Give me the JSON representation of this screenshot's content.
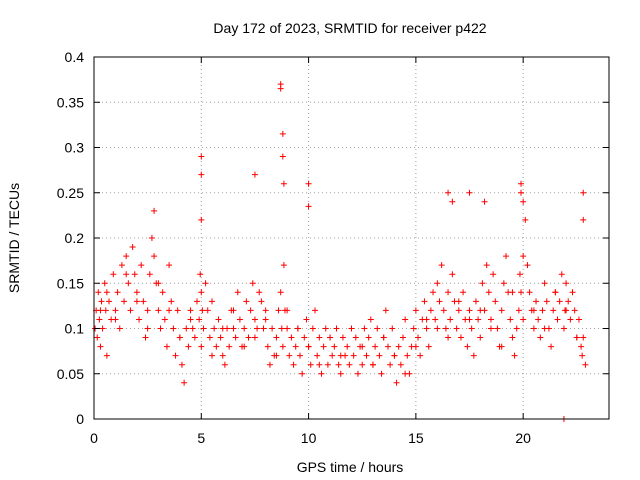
{
  "chart_data": {
    "type": "scatter",
    "title": "Day 172 of 2023, SRMTID for receiver p422",
    "xlabel": "GPS time / hours",
    "ylabel": "SRMTID / TECUs",
    "xlim": [
      0,
      24
    ],
    "ylim": [
      0,
      0.4
    ],
    "x_ticks": [
      0,
      5,
      10,
      15,
      20
    ],
    "x_tick_labels": [
      "0",
      "5",
      "10",
      "15",
      "20"
    ],
    "y_ticks": [
      0,
      0.05,
      0.1,
      0.15,
      0.2,
      0.25,
      0.3,
      0.35,
      0.4
    ],
    "y_tick_labels": [
      "0",
      "0.05",
      "0.1",
      "0.15",
      "0.2",
      "0.25",
      "0.3",
      "0.35",
      "0.4"
    ],
    "grid": true,
    "marker": "+",
    "color": "#ff0000",
    "series": [
      {
        "name": "p422",
        "x": [
          0.05,
          0.1,
          0.15,
          0.2,
          0.25,
          0.3,
          0.35,
          0.4,
          0.5,
          0.55,
          0.6,
          0.7,
          0.8,
          0.9,
          1.0,
          1.1,
          1.2,
          1.3,
          1.4,
          1.5,
          1.6,
          1.7,
          1.8,
          1.9,
          2.0,
          2.1,
          2.2,
          2.3,
          2.4,
          2.5,
          2.6,
          2.7,
          2.8,
          2.9,
          3.0,
          3.1,
          3.2,
          3.3,
          3.4,
          3.5,
          3.6,
          3.7,
          3.8,
          3.9,
          4.0,
          4.1,
          4.2,
          4.3,
          4.4,
          4.5,
          4.6,
          4.7,
          4.8,
          4.9,
          4.95,
          5.0,
          5.05,
          5.1,
          5.2,
          5.3,
          5.4,
          5.5,
          5.6,
          5.7,
          5.8,
          5.9,
          6.0,
          6.1,
          6.2,
          6.3,
          6.4,
          6.5,
          6.6,
          6.7,
          6.8,
          6.9,
          7.0,
          7.1,
          7.2,
          7.3,
          7.4,
          7.5,
          7.6,
          7.7,
          7.8,
          7.9,
          8.0,
          8.1,
          8.2,
          8.3,
          8.4,
          8.5,
          8.6,
          8.7,
          8.75,
          8.8,
          8.85,
          8.9,
          9.0,
          9.1,
          9.2,
          9.3,
          9.4,
          9.5,
          9.6,
          9.7,
          9.8,
          9.9,
          10.0,
          10.1,
          10.2,
          10.3,
          10.4,
          10.5,
          10.6,
          10.7,
          10.8,
          10.9,
          11.0,
          11.1,
          11.2,
          11.3,
          11.4,
          11.5,
          11.6,
          11.7,
          11.8,
          11.9,
          12.0,
          12.1,
          12.2,
          12.3,
          12.4,
          12.5,
          12.6,
          12.7,
          12.8,
          12.9,
          13.0,
          13.1,
          13.2,
          13.3,
          13.4,
          13.5,
          13.6,
          13.7,
          13.8,
          13.9,
          14.0,
          14.1,
          14.2,
          14.3,
          14.4,
          14.5,
          14.6,
          14.7,
          14.8,
          14.9,
          15.0,
          15.1,
          15.2,
          15.3,
          15.4,
          15.5,
          15.6,
          15.7,
          15.8,
          15.9,
          16.0,
          16.1,
          16.2,
          16.3,
          16.4,
          16.5,
          16.6,
          16.7,
          16.8,
          16.9,
          17.0,
          17.1,
          17.2,
          17.3,
          17.4,
          17.5,
          17.6,
          17.7,
          17.8,
          17.9,
          18.0,
          18.1,
          18.2,
          18.3,
          18.4,
          18.5,
          18.6,
          18.7,
          18.8,
          18.9,
          19.0,
          19.1,
          19.2,
          19.3,
          19.4,
          19.5,
          19.6,
          19.7,
          19.8,
          19.85,
          19.9,
          20.0,
          20.1,
          20.2,
          20.3,
          20.4,
          20.5,
          20.6,
          20.7,
          20.8,
          20.9,
          21.0,
          21.1,
          21.2,
          21.3,
          21.4,
          21.5,
          21.6,
          21.7,
          21.8,
          21.9,
          21.95,
          22.0,
          22.1,
          22.2,
          22.3,
          22.4,
          22.5,
          22.6,
          22.7,
          22.75,
          22.8,
          22.9,
          0.3,
          0.6,
          1.0,
          1.5,
          2.0,
          2.5,
          3.0,
          3.5,
          4.0,
          4.5,
          5.0,
          5.5,
          6.0,
          6.5,
          7.0,
          7.5,
          8.0,
          8.5,
          9.0,
          9.5,
          10.0,
          10.5,
          11.0,
          11.5,
          12.0,
          12.5,
          13.0,
          13.5,
          14.0,
          14.5,
          15.0,
          15.5,
          16.0,
          16.5,
          17.0,
          17.5,
          18.0,
          18.5,
          19.0,
          19.5,
          20.0,
          20.5,
          21.0,
          21.5,
          22.0,
          22.5,
          2.8,
          5.0,
          5.0,
          5.0,
          7.5,
          8.7,
          8.7,
          8.8,
          8.8,
          8.85,
          10.0,
          10.0,
          16.5,
          16.7,
          17.5,
          18.2,
          19.9,
          19.9,
          20.0,
          22.8,
          22.8,
          21.9
        ],
        "y": [
          0.1,
          0.12,
          0.09,
          0.14,
          0.11,
          0.08,
          0.13,
          0.1,
          0.15,
          0.12,
          0.07,
          0.13,
          0.11,
          0.16,
          0.12,
          0.14,
          0.1,
          0.17,
          0.13,
          0.18,
          0.15,
          0.12,
          0.19,
          0.16,
          0.14,
          0.11,
          0.17,
          0.13,
          0.09,
          0.12,
          0.16,
          0.2,
          0.18,
          0.15,
          0.12,
          0.1,
          0.14,
          0.11,
          0.08,
          0.17,
          0.13,
          0.1,
          0.07,
          0.12,
          0.09,
          0.06,
          0.04,
          0.1,
          0.08,
          0.12,
          0.1,
          0.09,
          0.13,
          0.11,
          0.16,
          0.14,
          0.12,
          0.1,
          0.15,
          0.12,
          0.09,
          0.07,
          0.1,
          0.08,
          0.11,
          0.09,
          0.07,
          0.06,
          0.1,
          0.08,
          0.12,
          0.1,
          0.09,
          0.14,
          0.11,
          0.08,
          0.1,
          0.13,
          0.09,
          0.12,
          0.15,
          0.11,
          0.1,
          0.14,
          0.13,
          0.1,
          0.12,
          0.08,
          0.06,
          0.1,
          0.07,
          0.09,
          0.12,
          0.14,
          0.1,
          0.08,
          0.17,
          0.12,
          0.1,
          0.07,
          0.09,
          0.06,
          0.08,
          0.1,
          0.07,
          0.05,
          0.09,
          0.11,
          0.08,
          0.06,
          0.1,
          0.12,
          0.07,
          0.09,
          0.05,
          0.08,
          0.1,
          0.06,
          0.09,
          0.07,
          0.08,
          0.1,
          0.06,
          0.05,
          0.09,
          0.07,
          0.08,
          0.06,
          0.1,
          0.07,
          0.09,
          0.05,
          0.08,
          0.06,
          0.1,
          0.07,
          0.09,
          0.11,
          0.06,
          0.08,
          0.1,
          0.07,
          0.05,
          0.09,
          0.12,
          0.08,
          0.06,
          0.1,
          0.07,
          0.04,
          0.08,
          0.06,
          0.09,
          0.11,
          0.07,
          0.05,
          0.08,
          0.1,
          0.12,
          0.09,
          0.07,
          0.11,
          0.13,
          0.1,
          0.08,
          0.12,
          0.14,
          0.11,
          0.15,
          0.13,
          0.17,
          0.12,
          0.1,
          0.14,
          0.11,
          0.16,
          0.13,
          0.1,
          0.12,
          0.09,
          0.14,
          0.11,
          0.08,
          0.12,
          0.1,
          0.07,
          0.13,
          0.11,
          0.09,
          0.15,
          0.12,
          0.17,
          0.14,
          0.11,
          0.16,
          0.13,
          0.1,
          0.08,
          0.12,
          0.15,
          0.18,
          0.14,
          0.11,
          0.09,
          0.07,
          0.1,
          0.12,
          0.16,
          0.14,
          0.18,
          0.22,
          0.17,
          0.14,
          0.12,
          0.1,
          0.13,
          0.11,
          0.09,
          0.12,
          0.15,
          0.13,
          0.1,
          0.08,
          0.12,
          0.14,
          0.11,
          0.13,
          0.16,
          0.1,
          0.12,
          0.15,
          0.13,
          0.11,
          0.14,
          0.12,
          0.09,
          0.11,
          0.08,
          0.07,
          0.09,
          0.06,
          0.12,
          0.14,
          0.11,
          0.16,
          0.13,
          0.1,
          0.15,
          0.12,
          0.09,
          0.11,
          0.08,
          0.13,
          0.1,
          0.12,
          0.08,
          0.09,
          0.11,
          0.07,
          0.12,
          0.1,
          0.08,
          0.06,
          0.09,
          0.07,
          0.1,
          0.08,
          0.06,
          0.09,
          0.07,
          0.05,
          0.08,
          0.11,
          0.1,
          0.09,
          0.13,
          0.11,
          0.12,
          0.1,
          0.08,
          0.14,
          0.11,
          0.12,
          0.1,
          0.14,
          0.12,
          0.09,
          0.23,
          0.29,
          0.27,
          0.22,
          0.27,
          0.37,
          0.365,
          0.315,
          0.29,
          0.26,
          0.26,
          0.235,
          0.25,
          0.24,
          0.25,
          0.24,
          0.26,
          0.25,
          0.24,
          0.25,
          0.22,
          0.0
        ]
      }
    ]
  }
}
